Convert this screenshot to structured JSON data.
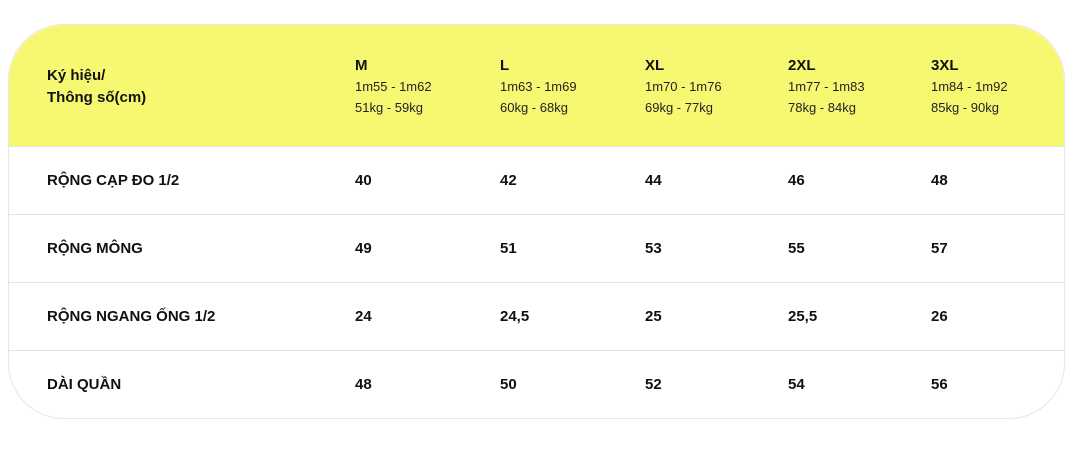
{
  "header": {
    "label_line1": "Ký hiệu/",
    "label_line2": "Thông số(cm)",
    "sizes": [
      {
        "name": "M",
        "height": "1m55 - 1m62",
        "weight": "51kg - 59kg"
      },
      {
        "name": "L",
        "height": "1m63 - 1m69",
        "weight": "60kg - 68kg"
      },
      {
        "name": "XL",
        "height": "1m70 - 1m76",
        "weight": "69kg - 77kg"
      },
      {
        "name": "2XL",
        "height": "1m77 - 1m83",
        "weight": "78kg - 84kg"
      },
      {
        "name": "3XL",
        "height": "1m84 - 1m92",
        "weight": "85kg - 90kg"
      }
    ]
  },
  "rows": [
    {
      "label": "RỘNG CẠP ĐO 1/2",
      "values": [
        "40",
        "42",
        "44",
        "46",
        "48"
      ]
    },
    {
      "label": "RỘNG MÔNG",
      "values": [
        "49",
        "51",
        "53",
        "55",
        "57"
      ]
    },
    {
      "label": "RỘNG NGANG ỐNG 1/2",
      "values": [
        "24",
        "24,5",
        "25",
        "25,5",
        "26"
      ]
    },
    {
      "label": "DÀI QUẦN",
      "values": [
        "48",
        "50",
        "52",
        "54",
        "56"
      ]
    }
  ],
  "colors": {
    "header_bg": "#f7f872",
    "border": "#e4e4e4"
  }
}
